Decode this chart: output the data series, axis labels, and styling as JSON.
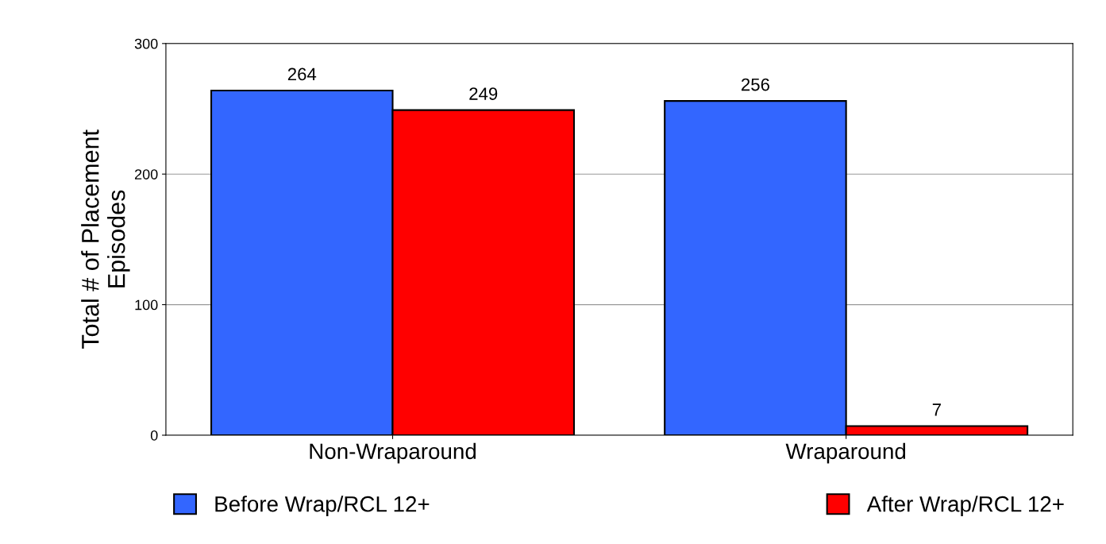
{
  "chart_data": {
    "type": "bar",
    "ylabel": "Total # of Placement\nEpisodes",
    "categories": [
      "Non-Wraparound",
      "Wraparound"
    ],
    "series": [
      {
        "name": "Before Wrap/RCL 12+",
        "color": "#3366ff",
        "values": [
          264,
          256
        ]
      },
      {
        "name": "After Wrap/RCL 12+",
        "color": "#ff0000",
        "values": [
          249,
          7
        ]
      }
    ],
    "ylim": [
      0,
      300
    ],
    "yticks": [
      0,
      100,
      200,
      300
    ],
    "grid": "y",
    "legend": "bottom",
    "data_labels": true
  }
}
